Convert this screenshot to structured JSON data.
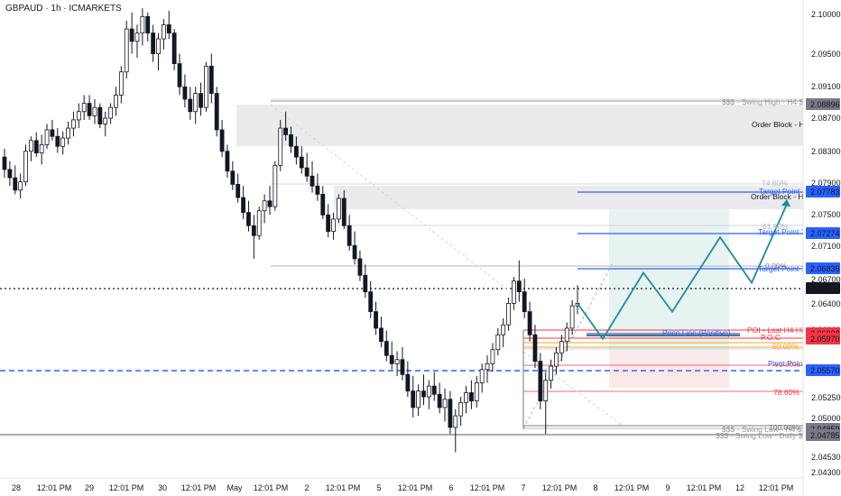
{
  "header": {
    "symbol": "GBPAUD · 1h · ICMARKETS"
  },
  "chart_data": {
    "type": "candlestick",
    "ylim": [
      2.0425,
      2.1025
    ],
    "y_ticks": [
      "2.10000",
      "2.09500",
      "2.09100",
      "2.08700",
      "2.08300",
      "2.07900",
      "2.07500",
      "2.07100",
      "2.06700",
      "2.06400",
      "2.06000",
      "2.05500",
      "2.05250",
      "2.05000",
      "2.04530",
      "2.04300"
    ],
    "x_ticks": [
      "28",
      "12:01 PM",
      "29",
      "12:01 PM",
      "30",
      "12:01 PM",
      "May",
      "12:01 PM",
      "2",
      "12:01 PM",
      "5",
      "12:01 PM",
      "6",
      "12:01 PM",
      "7",
      "12:01 PM",
      "8",
      "12:01 PM",
      "9",
      "12:01 PM",
      "12",
      "12:01 PM"
    ],
    "price_badges": [
      {
        "value": "2.08896",
        "bg": "#787b86",
        "fg": "#ffffff"
      },
      {
        "value": "2.07783",
        "bg": "#2962ff",
        "fg": "#ffffff"
      },
      {
        "value": "2.07274",
        "bg": "#2962ff",
        "fg": "#ffffff"
      },
      {
        "value": "2.06836",
        "bg": "#2962ff",
        "fg": "#ffffff"
      },
      {
        "value": "33:49",
        "bg": "#131722",
        "fg": "#ffffff"
      },
      {
        "value": "2.06020",
        "bg": "#f23645",
        "fg": "#ffffff"
      },
      {
        "value": "2.05970",
        "bg": "#f23645",
        "fg": "#ffffff"
      },
      {
        "value": "2.05570",
        "bg": "#2962ff",
        "fg": "#ffffff"
      },
      {
        "value": "2.04859",
        "bg": "#787b86",
        "fg": "#ffffff"
      },
      {
        "value": "2.04785",
        "bg": "#787b86",
        "fg": "#ffffff"
      }
    ],
    "annotations": [
      {
        "text": "$$$ - Swing High - H4 $$$",
        "color": "#9598a1"
      },
      {
        "text": "Order Block - H4",
        "color": "#131722"
      },
      {
        "text": "74.60%",
        "color": "#b2b5be"
      },
      {
        "text": "Target Point 3",
        "color": "#2962ff"
      },
      {
        "text": "Order Block - H1",
        "color": "#131722"
      },
      {
        "text": "61.80%",
        "color": "#b2b5be"
      },
      {
        "text": "Target Point 2",
        "color": "#2962ff"
      },
      {
        "text": "0.00%",
        "color": "#787b86"
      },
      {
        "text": "Target Point 1",
        "color": "#2962ff"
      },
      {
        "text": "POI - Last H4 High",
        "color": "#f23645"
      },
      {
        "text": "P.O.C",
        "color": "#f23645"
      },
      {
        "text": "Price Line (Positive)",
        "color": "#2962ff"
      },
      {
        "text": "50.00%",
        "color": "#f5a623"
      },
      {
        "text": "Pivot Point",
        "color": "#2962ff"
      },
      {
        "text": "61.80%",
        "color": "#f23645"
      },
      {
        "text": "78.60%",
        "color": "#f23645"
      },
      {
        "text": "100.00%",
        "color": "#787b86"
      },
      {
        "text": "$$$ - Swing Low - H4 $$$",
        "color": "#9598a1"
      },
      {
        "text": "$$$ - Swing Low - Daily $$$",
        "color": "#9598a1"
      }
    ],
    "path_points": [
      2.0658,
      2.0615,
      2.0695,
      2.0648,
      2.0738,
      2.0683,
      2.0778
    ],
    "candles": [
      [
        2.0835,
        2.0845,
        2.081,
        2.082
      ],
      [
        2.082,
        2.083,
        2.08,
        2.081
      ],
      [
        2.081,
        2.0825,
        2.079,
        2.0795
      ],
      [
        2.0795,
        2.0815,
        2.0785,
        2.0805
      ],
      [
        2.0805,
        2.085,
        2.08,
        2.0842
      ],
      [
        2.0842,
        2.086,
        2.083,
        2.0855
      ],
      [
        2.0855,
        2.0865,
        2.0835,
        2.084
      ],
      [
        2.084,
        2.0862,
        2.0826,
        2.085
      ],
      [
        2.085,
        2.0875,
        2.0845,
        2.0868
      ],
      [
        2.0868,
        2.088,
        2.0855,
        2.086
      ],
      [
        2.086,
        2.087,
        2.084,
        2.0848
      ],
      [
        2.0848,
        2.0866,
        2.0838,
        2.0858
      ],
      [
        2.0858,
        2.0878,
        2.085,
        2.087
      ],
      [
        2.087,
        2.089,
        2.086,
        2.088
      ],
      [
        2.088,
        2.09,
        2.087,
        2.089
      ],
      [
        2.089,
        2.091,
        2.088,
        2.09
      ],
      [
        2.09,
        2.091,
        2.088,
        2.0885
      ],
      [
        2.0885,
        2.0905,
        2.0875,
        2.0895
      ],
      [
        2.0895,
        2.09,
        2.087,
        2.0875
      ],
      [
        2.0875,
        2.089,
        2.086,
        2.0882
      ],
      [
        2.0882,
        2.09,
        2.0875,
        2.0895
      ],
      [
        2.0895,
        2.092,
        2.0885,
        2.091
      ],
      [
        2.091,
        2.0945,
        2.09,
        2.0938
      ],
      [
        2.0938,
        2.1,
        2.093,
        2.099
      ],
      [
        2.099,
        2.101,
        2.096,
        2.0975
      ],
      [
        2.0975,
        2.0995,
        2.0955,
        2.0985
      ],
      [
        2.0985,
        2.1015,
        2.097,
        2.1005
      ],
      [
        2.1005,
        2.101,
        2.0975,
        2.0985
      ],
      [
        2.0985,
        2.0995,
        2.095,
        2.096
      ],
      [
        2.096,
        2.0985,
        2.094,
        2.0978
      ],
      [
        2.0978,
        2.1002,
        2.0965,
        2.0995
      ],
      [
        2.0995,
        2.1012,
        2.0978,
        2.0985
      ],
      [
        2.0985,
        2.099,
        2.094,
        2.0948
      ],
      [
        2.0948,
        2.096,
        2.091,
        2.092
      ],
      [
        2.092,
        2.0935,
        2.0895,
        2.0905
      ],
      [
        2.0905,
        2.092,
        2.088,
        2.089
      ],
      [
        2.089,
        2.092,
        2.0875,
        2.0912
      ],
      [
        2.0912,
        2.0925,
        2.0885,
        2.0895
      ],
      [
        2.0895,
        2.095,
        2.089,
        2.0945
      ],
      [
        2.0945,
        2.096,
        2.09,
        2.0912
      ],
      [
        2.0912,
        2.092,
        2.086,
        2.0868
      ],
      [
        2.0868,
        2.088,
        2.0835,
        2.0842
      ],
      [
        2.0842,
        2.085,
        2.081,
        2.0818
      ],
      [
        2.0818,
        2.083,
        2.0795,
        2.0802
      ],
      [
        2.0802,
        2.0815,
        2.078,
        2.0786
      ],
      [
        2.0786,
        2.08,
        2.076,
        2.0768
      ],
      [
        2.0768,
        2.0782,
        2.0745,
        2.0752
      ],
      [
        2.0752,
        2.0765,
        2.0712,
        2.074
      ],
      [
        2.074,
        2.0775,
        2.0735,
        2.077
      ],
      [
        2.077,
        2.079,
        2.0755,
        2.0782
      ],
      [
        2.0782,
        2.08,
        2.0765,
        2.0775
      ],
      [
        2.0775,
        2.083,
        2.077,
        2.0825
      ],
      [
        2.0825,
        2.088,
        2.0818,
        2.087
      ],
      [
        2.087,
        2.089,
        2.0855,
        2.0862
      ],
      [
        2.0862,
        2.0872,
        2.084,
        2.0848
      ],
      [
        2.0848,
        2.086,
        2.0826,
        2.0835
      ],
      [
        2.0835,
        2.0848,
        2.0815,
        2.0822
      ],
      [
        2.0822,
        2.084,
        2.0805,
        2.0812
      ],
      [
        2.0812,
        2.083,
        2.0792,
        2.08
      ],
      [
        2.08,
        2.0815,
        2.0782,
        2.079
      ],
      [
        2.079,
        2.08,
        2.076,
        2.0765
      ],
      [
        2.0765,
        2.0778,
        2.0738,
        2.0745
      ],
      [
        2.0745,
        2.0768,
        2.0735,
        2.076
      ],
      [
        2.076,
        2.079,
        2.0755,
        2.0785
      ],
      [
        2.0785,
        2.0795,
        2.0748,
        2.0752
      ],
      [
        2.0752,
        2.0765,
        2.0722,
        2.0728
      ],
      [
        2.0728,
        2.0745,
        2.0705,
        2.0712
      ],
      [
        2.0712,
        2.0722,
        2.0685,
        2.0692
      ],
      [
        2.0692,
        2.0705,
        2.0665,
        2.0672
      ],
      [
        2.0672,
        2.0685,
        2.064,
        2.0648
      ],
      [
        2.0648,
        2.066,
        2.062,
        2.0628
      ],
      [
        2.0628,
        2.0642,
        2.0605,
        2.0612
      ],
      [
        2.0612,
        2.0625,
        2.0588,
        2.0595
      ],
      [
        2.0595,
        2.0612,
        2.0578,
        2.0585
      ],
      [
        2.0585,
        2.06,
        2.057,
        2.059
      ],
      [
        2.059,
        2.0605,
        2.0565,
        2.0572
      ],
      [
        2.0572,
        2.0588,
        2.0545,
        2.0552
      ],
      [
        2.0552,
        2.057,
        2.052,
        2.0532
      ],
      [
        2.0532,
        2.056,
        2.0522,
        2.0552
      ],
      [
        2.0552,
        2.0572,
        2.0535,
        2.0545
      ],
      [
        2.0545,
        2.0565,
        2.053,
        2.0558
      ],
      [
        2.0558,
        2.0575,
        2.054,
        2.0548
      ],
      [
        2.0548,
        2.0562,
        2.0525,
        2.0532
      ],
      [
        2.0532,
        2.0555,
        2.0515,
        2.0542
      ],
      [
        2.0542,
        2.0552,
        2.05,
        2.0508
      ],
      [
        2.0508,
        2.053,
        2.0478,
        2.0522
      ],
      [
        2.0522,
        2.0545,
        2.051,
        2.0538
      ],
      [
        2.0538,
        2.0558,
        2.0525,
        2.055
      ],
      [
        2.055,
        2.0565,
        2.053,
        2.054
      ],
      [
        2.054,
        2.057,
        2.0532,
        2.0562
      ],
      [
        2.0562,
        2.0585,
        2.055,
        2.0578
      ],
      [
        2.0578,
        2.0595,
        2.0562,
        2.0585
      ],
      [
        2.0585,
        2.061,
        2.0575,
        2.0602
      ],
      [
        2.0602,
        2.0628,
        2.0595,
        2.062
      ],
      [
        2.062,
        2.064,
        2.0605,
        2.0632
      ],
      [
        2.0632,
        2.0665,
        2.0625,
        2.0658
      ],
      [
        2.0658,
        2.069,
        2.065,
        2.0685
      ],
      [
        2.0685,
        2.071,
        2.066,
        2.0672
      ],
      [
        2.0672,
        2.0688,
        2.064,
        2.0648
      ],
      [
        2.0648,
        2.066,
        2.0612,
        2.062
      ],
      [
        2.062,
        2.0632,
        2.058,
        2.0588
      ],
      [
        2.0588,
        2.0598,
        2.053,
        2.054
      ],
      [
        2.054,
        2.0575,
        2.05,
        2.0565
      ],
      [
        2.0565,
        2.059,
        2.0555,
        2.0582
      ],
      [
        2.0582,
        2.0605,
        2.0572,
        2.0598
      ],
      [
        2.0598,
        2.062,
        2.0588,
        2.0612
      ],
      [
        2.0612,
        2.0635,
        2.06,
        2.0628
      ],
      [
        2.0628,
        2.0662,
        2.062,
        2.0655
      ],
      [
        2.0655,
        2.068,
        2.0645,
        2.0658
      ]
    ]
  }
}
